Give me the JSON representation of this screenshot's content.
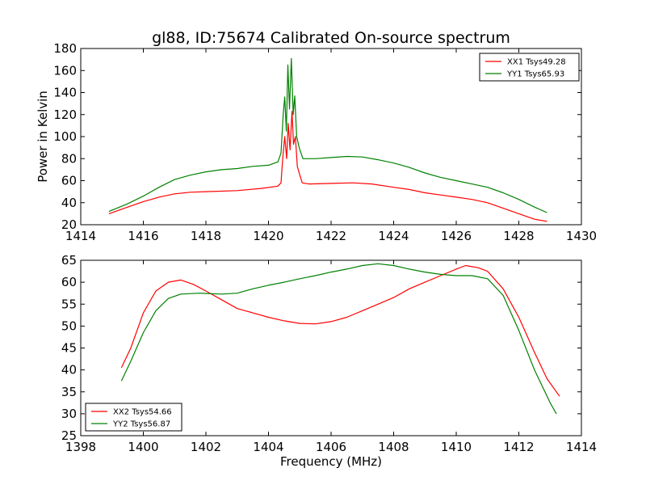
{
  "title": "gl88, ID:75674 Calibrated On-source spectrum",
  "chart_data": [
    {
      "type": "line",
      "ylabel": "Power in Kelvin",
      "xlim": [
        1414,
        1430
      ],
      "ylim": [
        20,
        180
      ],
      "xticks": [
        "1414",
        "1416",
        "1418",
        "1420",
        "1422",
        "1424",
        "1426",
        "1428",
        "1430"
      ],
      "yticks": [
        "20",
        "40",
        "60",
        "80",
        "100",
        "120",
        "140",
        "160",
        "180"
      ],
      "legend_position": "top-right",
      "series": [
        {
          "name": "XX1 Tsys49.28",
          "color": "#ff0000",
          "points": [
            [
              1414.9,
              30
            ],
            [
              1415.5,
              36
            ],
            [
              1416.0,
              41
            ],
            [
              1416.5,
              45
            ],
            [
              1417.0,
              48
            ],
            [
              1417.5,
              49.5
            ],
            [
              1418.0,
              50
            ],
            [
              1419.0,
              51
            ],
            [
              1419.8,
              53
            ],
            [
              1420.3,
              55
            ],
            [
              1420.4,
              58
            ],
            [
              1420.45,
              78
            ],
            [
              1420.52,
              100
            ],
            [
              1420.58,
              80
            ],
            [
              1420.63,
              112
            ],
            [
              1420.69,
              88
            ],
            [
              1420.75,
              123
            ],
            [
              1420.8,
              93
            ],
            [
              1420.86,
              100
            ],
            [
              1420.92,
              73
            ],
            [
              1421.0,
              65
            ],
            [
              1421.08,
              58
            ],
            [
              1421.3,
              57
            ],
            [
              1422.0,
              57.5
            ],
            [
              1422.7,
              58
            ],
            [
              1423.3,
              57
            ],
            [
              1424.0,
              54
            ],
            [
              1424.5,
              52
            ],
            [
              1425.0,
              49
            ],
            [
              1425.5,
              47
            ],
            [
              1426.0,
              45
            ],
            [
              1426.5,
              43
            ],
            [
              1427.0,
              40
            ],
            [
              1427.5,
              35
            ],
            [
              1428.0,
              30
            ],
            [
              1428.5,
              25
            ],
            [
              1428.9,
              23
            ]
          ]
        },
        {
          "name": "YY1 Tsys65.93",
          "color": "#008000",
          "points": [
            [
              1414.9,
              32
            ],
            [
              1415.5,
              39
            ],
            [
              1416.0,
              46
            ],
            [
              1416.5,
              54
            ],
            [
              1417.0,
              61
            ],
            [
              1417.5,
              65
            ],
            [
              1418.0,
              68
            ],
            [
              1418.5,
              70
            ],
            [
              1419.0,
              71
            ],
            [
              1419.5,
              73
            ],
            [
              1420.0,
              74
            ],
            [
              1420.3,
              77
            ],
            [
              1420.4,
              85
            ],
            [
              1420.47,
              120
            ],
            [
              1420.52,
              136
            ],
            [
              1420.57,
              105
            ],
            [
              1420.62,
              165
            ],
            [
              1420.67,
              125
            ],
            [
              1420.73,
              171
            ],
            [
              1420.79,
              120
            ],
            [
              1420.84,
              137
            ],
            [
              1420.9,
              100
            ],
            [
              1420.98,
              90
            ],
            [
              1421.1,
              80
            ],
            [
              1421.5,
              80
            ],
            [
              1422.0,
              81
            ],
            [
              1422.5,
              82
            ],
            [
              1423.0,
              81.5
            ],
            [
              1423.5,
              79
            ],
            [
              1424.0,
              76
            ],
            [
              1424.5,
              72
            ],
            [
              1425.0,
              67
            ],
            [
              1425.5,
              63
            ],
            [
              1426.0,
              60
            ],
            [
              1426.5,
              57
            ],
            [
              1427.0,
              54
            ],
            [
              1427.5,
              49
            ],
            [
              1428.0,
              43
            ],
            [
              1428.5,
              36
            ],
            [
              1428.9,
              31
            ]
          ]
        }
      ]
    },
    {
      "type": "line",
      "xlabel": "Frequency (MHz)",
      "xlim": [
        1398,
        1414
      ],
      "ylim": [
        25,
        65
      ],
      "xticks": [
        "1398",
        "1400",
        "1402",
        "1404",
        "1406",
        "1408",
        "1410",
        "1412",
        "1414"
      ],
      "yticks": [
        "25",
        "30",
        "35",
        "40",
        "45",
        "50",
        "55",
        "60",
        "65"
      ],
      "legend_position": "bottom-left",
      "series": [
        {
          "name": "XX2 Tsys54.66",
          "color": "#ff0000",
          "points": [
            [
              1399.3,
              40.5
            ],
            [
              1399.6,
              45
            ],
            [
              1400.0,
              53
            ],
            [
              1400.4,
              58
            ],
            [
              1400.8,
              60
            ],
            [
              1401.2,
              60.5
            ],
            [
              1401.6,
              59.5
            ],
            [
              1402.0,
              58
            ],
            [
              1402.5,
              56
            ],
            [
              1403.0,
              54
            ],
            [
              1403.5,
              53
            ],
            [
              1404.0,
              52
            ],
            [
              1404.5,
              51.2
            ],
            [
              1405.0,
              50.6
            ],
            [
              1405.5,
              50.5
            ],
            [
              1406.0,
              51
            ],
            [
              1406.5,
              52
            ],
            [
              1407.0,
              53.5
            ],
            [
              1407.5,
              55
            ],
            [
              1408.0,
              56.5
            ],
            [
              1408.5,
              58.5
            ],
            [
              1409.0,
              60
            ],
            [
              1409.5,
              61.5
            ],
            [
              1410.0,
              63
            ],
            [
              1410.3,
              63.8
            ],
            [
              1410.7,
              63.3
            ],
            [
              1411.0,
              62.5
            ],
            [
              1411.5,
              58.5
            ],
            [
              1412.0,
              52
            ],
            [
              1412.5,
              44
            ],
            [
              1412.9,
              38
            ],
            [
              1413.3,
              34
            ]
          ]
        },
        {
          "name": "YY2 Tsys56.87",
          "color": "#008000",
          "points": [
            [
              1399.3,
              37.5
            ],
            [
              1399.6,
              42
            ],
            [
              1400.0,
              48.5
            ],
            [
              1400.4,
              53.5
            ],
            [
              1400.8,
              56.3
            ],
            [
              1401.2,
              57.3
            ],
            [
              1401.8,
              57.5
            ],
            [
              1402.5,
              57.3
            ],
            [
              1403.0,
              57.5
            ],
            [
              1403.5,
              58.5
            ],
            [
              1404.0,
              59.3
            ],
            [
              1404.5,
              60
            ],
            [
              1405.0,
              60.8
            ],
            [
              1405.5,
              61.5
            ],
            [
              1406.0,
              62.3
            ],
            [
              1406.5,
              63
            ],
            [
              1407.0,
              63.8
            ],
            [
              1407.5,
              64.2
            ],
            [
              1408.0,
              63.8
            ],
            [
              1408.5,
              63
            ],
            [
              1409.0,
              62.3
            ],
            [
              1409.5,
              61.8
            ],
            [
              1410.0,
              61.5
            ],
            [
              1410.5,
              61.5
            ],
            [
              1411.0,
              60.8
            ],
            [
              1411.5,
              57
            ],
            [
              1412.0,
              49
            ],
            [
              1412.5,
              40
            ],
            [
              1413.0,
              32.5
            ],
            [
              1413.2,
              30
            ]
          ]
        }
      ]
    }
  ]
}
